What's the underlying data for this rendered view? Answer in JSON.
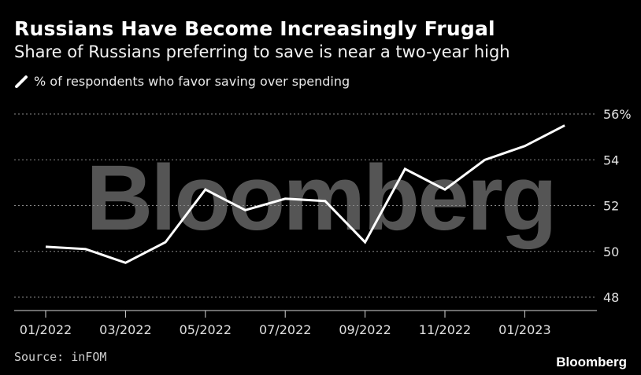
{
  "title": "Russians Have Become Increasingly Frugal",
  "subtitle": "Share of Russians preferring to save is near a two-year high",
  "source": "Source: inFOM",
  "brand": "Bloomberg",
  "watermark": "Bloomberg",
  "colors": {
    "background": "#000000",
    "line": "#ffffff",
    "grid": "#8a8a8a",
    "watermark": "#555555"
  },
  "chart_data": {
    "type": "line",
    "title": "Russians Have Become Increasingly Frugal",
    "subtitle": "Share of Russians preferring to save is near a two-year high",
    "xlabel": "",
    "ylabel": "",
    "legend_position": "top-left",
    "grid": true,
    "ylim": [
      47.5,
      56.5
    ],
    "y_ticks": [
      {
        "value": 56,
        "label": "56%"
      },
      {
        "value": 54,
        "label": "54"
      },
      {
        "value": 52,
        "label": "52"
      },
      {
        "value": 50,
        "label": "50"
      },
      {
        "value": 48,
        "label": "48"
      }
    ],
    "x_ticks": [
      "01/2022",
      "03/2022",
      "05/2022",
      "07/2022",
      "09/2022",
      "11/2022",
      "01/2023"
    ],
    "series": [
      {
        "name": "% of respondents who favor saving over spending",
        "x": [
          "01/2022",
          "02/2022",
          "03/2022",
          "04/2022",
          "05/2022",
          "06/2022",
          "07/2022",
          "08/2022",
          "09/2022",
          "10/2022",
          "11/2022",
          "12/2022",
          "01/2023",
          "02/2023"
        ],
        "values": [
          50.2,
          50.1,
          49.5,
          50.4,
          52.7,
          51.8,
          52.3,
          52.2,
          50.4,
          53.6,
          52.7,
          54.0,
          54.6,
          55.5
        ]
      }
    ]
  }
}
